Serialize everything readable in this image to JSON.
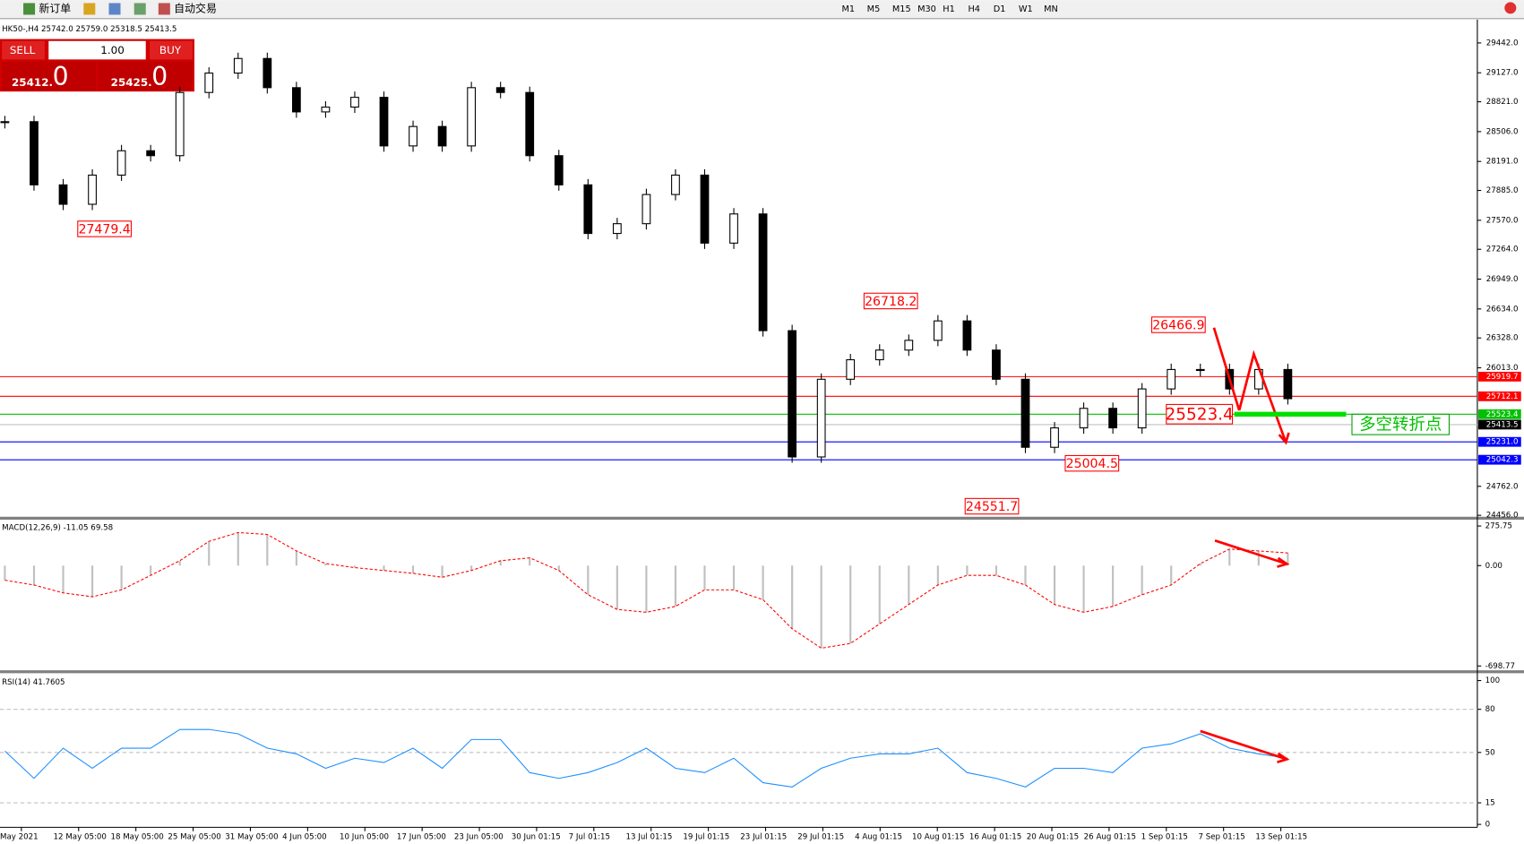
{
  "toolbar": {
    "new_order": "新订单",
    "auto_trading": "自动交易",
    "timeframes": [
      "M1",
      "M5",
      "M15",
      "M30",
      "H1",
      "H4",
      "D1",
      "W1",
      "MN"
    ]
  },
  "trade_panel": {
    "sell": "SELL",
    "lot": "1.00",
    "buy": "BUY",
    "bid_prefix": "25412.",
    "bid_big": "0",
    "ask_prefix": "25425.",
    "ask_big": "0"
  },
  "chart": {
    "info": "HK50-,H4  25742.0 25759.0 25318.5 25413.5",
    "ylim": [
      24456,
      29442
    ],
    "yticks": [
      {
        "value": 29442,
        "label": "29442.0"
      },
      {
        "value": 29127,
        "label": "29127.0"
      },
      {
        "value": 28821,
        "label": "28821.0"
      },
      {
        "value": 28506,
        "label": "28506.0"
      },
      {
        "value": 28191,
        "label": "28191.0"
      },
      {
        "value": 27885,
        "label": "27885.0"
      },
      {
        "value": 27570,
        "label": "27570.0"
      },
      {
        "value": 27264,
        "label": "27264.0"
      },
      {
        "value": 26949,
        "label": "26949.0"
      },
      {
        "value": 26634,
        "label": "26634.0"
      },
      {
        "value": 26328,
        "label": "26328.0"
      },
      {
        "value": 26013,
        "label": "26013.0"
      },
      {
        "value": 24762,
        "label": "24762.0"
      },
      {
        "value": 24456,
        "label": "24456.0"
      }
    ],
    "levels": [
      {
        "value": 25919.7,
        "label": "25919.7",
        "color": "#ff0000"
      },
      {
        "value": 25712.1,
        "label": "25712.1",
        "color": "#ff0000"
      },
      {
        "value": 25523.4,
        "label": "25523.4",
        "color": "#00c000"
      },
      {
        "value": 25413.5,
        "label": "25413.5",
        "color": "#c0c0c0"
      },
      {
        "value": 25231,
        "label": "25231.0",
        "color": "#0000ff"
      },
      {
        "value": 25042.3,
        "label": "25042.3",
        "color": "#0000ff"
      }
    ],
    "annotations": [
      {
        "value": 27479.4,
        "label": "27479.4"
      },
      {
        "value": 26718.2,
        "label": "26718.2"
      },
      {
        "value": 26466.9,
        "label": "26466.9"
      },
      {
        "value": 25523.4,
        "label": "25523.4"
      },
      {
        "value": 25004.5,
        "label": "25004.5"
      },
      {
        "value": 24551.7,
        "label": "24551.7"
      }
    ],
    "note": "多空转折点",
    "closes": [
      28611,
      27944,
      27739,
      28047,
      28304,
      28252,
      28919,
      29124,
      29278,
      28970,
      28714,
      28765,
      28868,
      28355,
      28560,
      28355,
      28970,
      28919,
      28252,
      27944,
      27431,
      27534,
      27842,
      28047,
      27329,
      27637,
      26405,
      25072,
      25892,
      26098,
      26200,
      26303,
      26508,
      26200,
      25892,
      25174,
      25379,
      25585,
      25379,
      25790,
      25995,
      25995,
      25790,
      25995,
      25687
    ],
    "time_labels": [
      "May 2021",
      "12 May 05:00",
      "18 May 05:00",
      "25 May 05:00",
      "31 May 05:00",
      "4 Jun 05:00",
      "10 Jun 05:00",
      "17 Jun 05:00",
      "23 Jun 05:00",
      "30 Jun 01:15",
      "7 Jul 01:15",
      "13 Jul 01:15",
      "19 Jul 01:15",
      "23 Jul 01:15",
      "29 Jul 01:15",
      "4 Aug 01:15",
      "10 Aug 01:15",
      "16 Aug 01:15",
      "20 Aug 01:15",
      "26 Aug 01:15",
      "1 Sep 01:15",
      "7 Sep 01:15",
      "13 Sep 01:15"
    ]
  },
  "macd": {
    "label": "MACD(12,26,9) -11.05 69.58",
    "ylim": [
      -698.77,
      275.75
    ],
    "ticks": [
      {
        "value": 275.75,
        "label": "275.75"
      },
      {
        "value": 0,
        "label": "0.00"
      },
      {
        "value": -698.77,
        "label": "-698.77"
      }
    ],
    "signal": [
      -102,
      -135,
      -190,
      -217,
      -169,
      -68,
      34,
      169,
      230,
      217,
      102,
      14,
      -14,
      -34,
      -54,
      -81,
      -34,
      34,
      54,
      -34,
      -203,
      -305,
      -325,
      -284,
      -169,
      -169,
      -237,
      -440,
      -575,
      -542,
      -406,
      -271,
      -135,
      -68,
      -68,
      -135,
      -271,
      -325,
      -284,
      -203,
      -135,
      14,
      115,
      102,
      88
    ]
  },
  "rsi": {
    "label": "RSI(14) 41.7605",
    "ylim": [
      0,
      100
    ],
    "ticks": [
      100,
      80,
      50,
      15,
      0
    ],
    "values": [
      51,
      32,
      53,
      39,
      53,
      53,
      66,
      66,
      63,
      53,
      49,
      39,
      46,
      43,
      53,
      39,
      59,
      59,
      36,
      32,
      36,
      43,
      53,
      39,
      36,
      46,
      29,
      26,
      39,
      46,
      49,
      49,
      53,
      36,
      32,
      26,
      39,
      39,
      36,
      53,
      56,
      63,
      53,
      49,
      46
    ]
  }
}
